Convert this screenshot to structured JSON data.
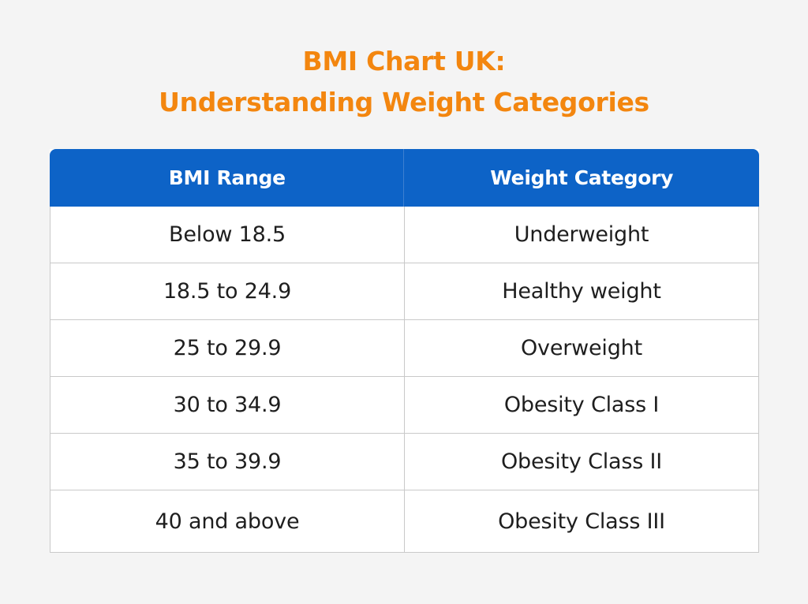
{
  "title": {
    "line1": "BMI Chart UK:",
    "line2": "Understanding Weight Categories"
  },
  "chart_data": {
    "type": "table",
    "title": "BMI Chart UK: Understanding Weight Categories",
    "columns": [
      "BMI Range",
      "Weight Category"
    ],
    "rows": [
      [
        "Below 18.5",
        "Underweight"
      ],
      [
        "18.5 to 24.9",
        "Healthy weight"
      ],
      [
        "25 to 29.9",
        "Overweight"
      ],
      [
        "30 to 34.9",
        "Obesity Class I"
      ],
      [
        "35 to 39.9",
        "Obesity Class II"
      ],
      [
        "40 and above",
        "Obesity Class III"
      ]
    ]
  },
  "colors": {
    "title": "#f3860f",
    "header_bg": "#0d63c7",
    "header_text": "#ffffff",
    "border": "#c9c9c9",
    "background": "#f4f4f4"
  }
}
